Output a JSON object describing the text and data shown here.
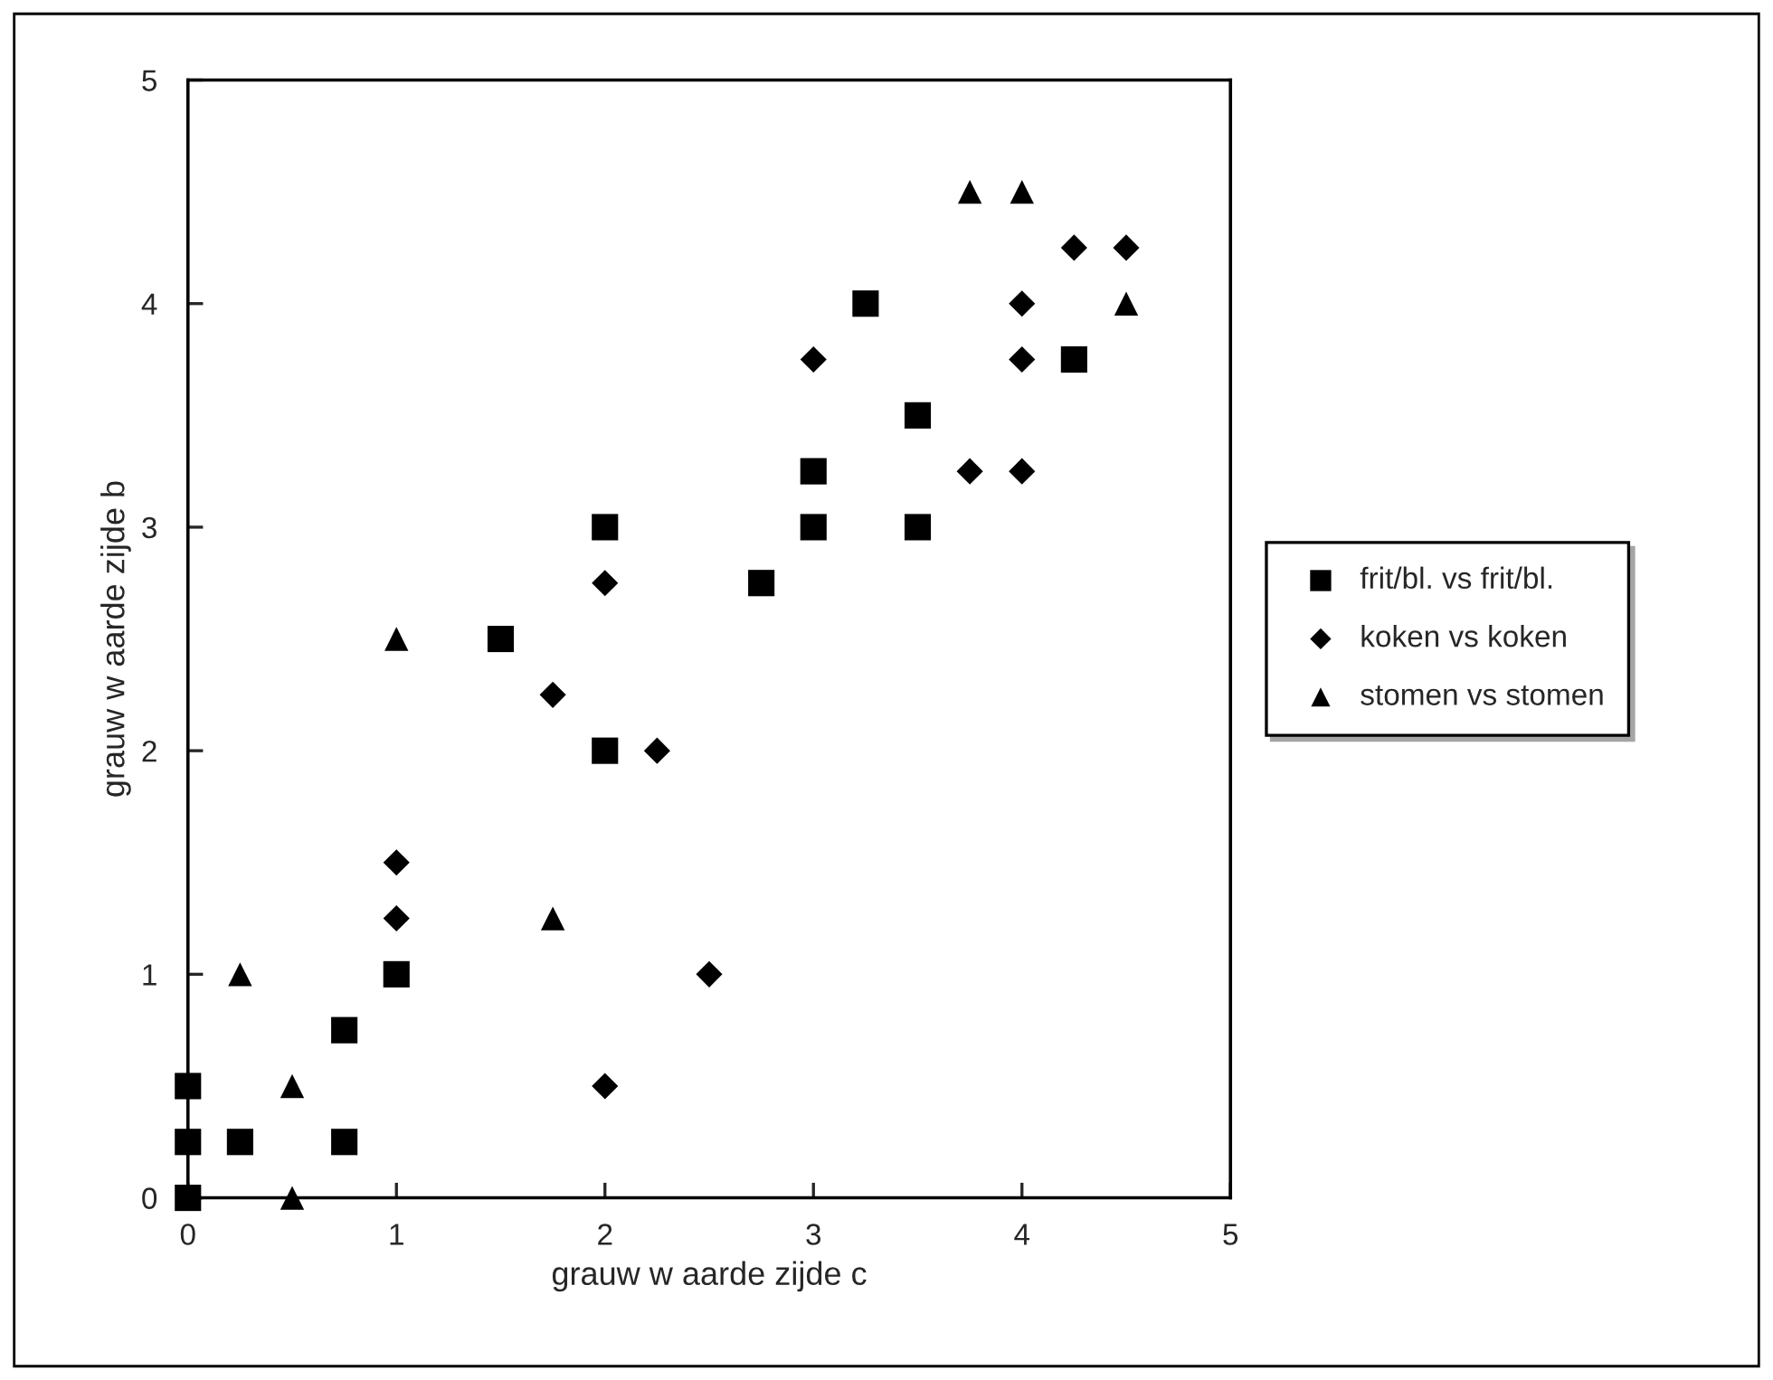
{
  "chart_data": {
    "type": "scatter",
    "xlabel": "grauw w aarde zijde c",
    "ylabel": "grauw w aarde zijde b",
    "xlim": [
      0,
      5
    ],
    "ylim": [
      0,
      5
    ],
    "xticks": [
      0,
      1,
      2,
      3,
      4,
      5
    ],
    "yticks": [
      0,
      1,
      2,
      3,
      4,
      5
    ],
    "grid": false,
    "legend": "right",
    "series": [
      {
        "name": "frit/bl. vs frit/bl.",
        "color": "#000000",
        "marker": "square",
        "x": [
          0,
          0,
          0,
          0.25,
          0.75,
          0.75,
          1,
          1.5,
          2,
          2,
          2.75,
          3,
          3,
          3.25,
          3.5,
          3.5,
          4.25
        ],
        "values": [
          0,
          0.25,
          0.5,
          0.25,
          0.25,
          0.75,
          1,
          2.5,
          2,
          3,
          2.75,
          3,
          3.25,
          4,
          3.5,
          3,
          3.75
        ]
      },
      {
        "name": "koken vs koken",
        "color": "#000000",
        "marker": "diamond",
        "x": [
          1,
          1,
          1.75,
          2,
          2.25,
          2,
          2.5,
          3,
          3.75,
          4,
          4,
          4,
          4.25,
          4.5
        ],
        "values": [
          1.25,
          1.5,
          2.25,
          2.75,
          2,
          0.5,
          1,
          3.75,
          3.25,
          3.25,
          3.75,
          4,
          4.25,
          4.25
        ]
      },
      {
        "name": "stomen vs stomen",
        "color": "#000000",
        "marker": "triangle",
        "x": [
          0.25,
          0.5,
          0.5,
          1,
          1.75,
          3.75,
          4,
          4.5
        ],
        "values": [
          1,
          0.5,
          0,
          2.5,
          1.25,
          4.5,
          4.5,
          4
        ]
      }
    ]
  }
}
